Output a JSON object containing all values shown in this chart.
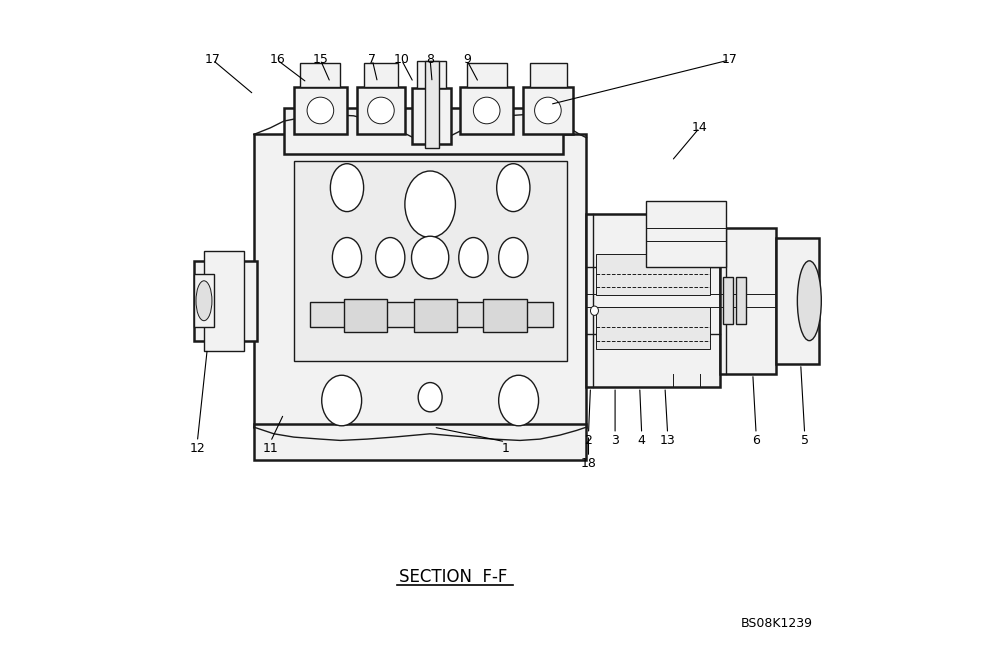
{
  "bg_color": "#ffffff",
  "line_color": "#1a1a1a",
  "section_label": "SECTION  F-F",
  "ref_code": "BS08K1239",
  "fig_width": 10.0,
  "fig_height": 6.68
}
